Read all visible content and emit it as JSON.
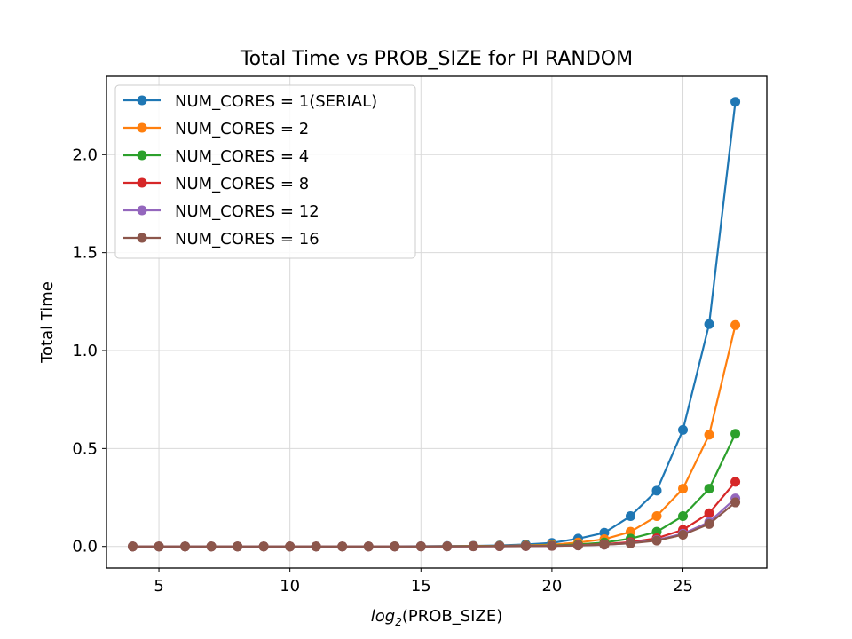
{
  "chart_data": {
    "type": "line",
    "title": "Total Time vs PROB_SIZE for PI RANDOM",
    "xlabel_prefix": "log",
    "xlabel_sub": "2",
    "xlabel_suffix": "(PROB_SIZE)",
    "ylabel": "Total Time",
    "xlim": [
      3,
      28.2
    ],
    "ylim": [
      -0.11,
      2.4
    ],
    "xticks": [
      5,
      10,
      15,
      20,
      25
    ],
    "yticks": [
      0.0,
      0.5,
      1.0,
      1.5,
      2.0
    ],
    "xtick_labels": [
      "5",
      "10",
      "15",
      "20",
      "25"
    ],
    "ytick_labels": [
      "0.0",
      "0.5",
      "1.0",
      "1.5",
      "2.0"
    ],
    "grid": true,
    "legend_position": "upper-left",
    "x": [
      4,
      5,
      6,
      7,
      8,
      9,
      10,
      11,
      12,
      13,
      14,
      15,
      16,
      17,
      18,
      19,
      20,
      21,
      22,
      23,
      24,
      25,
      26,
      27
    ],
    "series": [
      {
        "name": "NUM_CORES = 1(SERIAL)",
        "color": "#1f77b4",
        "values": [
          0.0,
          0.0,
          0.0,
          0.0,
          0.0,
          0.0,
          0.0,
          0.0,
          0.0,
          0.0,
          0.0005,
          0.001,
          0.002,
          0.003,
          0.005,
          0.01,
          0.018,
          0.04,
          0.07,
          0.155,
          0.285,
          0.595,
          1.135,
          2.27
        ]
      },
      {
        "name": "NUM_CORES = 2",
        "color": "#ff7f0e",
        "values": [
          0.0,
          0.0,
          0.0,
          0.0,
          0.0,
          0.0,
          0.0,
          0.0,
          0.0,
          0.0,
          0.0003,
          0.0006,
          0.001,
          0.002,
          0.003,
          0.005,
          0.009,
          0.02,
          0.037,
          0.075,
          0.155,
          0.295,
          0.57,
          1.13
        ]
      },
      {
        "name": "NUM_CORES = 4",
        "color": "#2ca02c",
        "values": [
          0.0,
          0.0,
          0.0,
          0.0,
          0.0,
          0.0,
          0.0,
          0.0,
          0.0,
          0.0,
          0.0002,
          0.0004,
          0.0007,
          0.0012,
          0.002,
          0.003,
          0.005,
          0.01,
          0.02,
          0.04,
          0.075,
          0.155,
          0.295,
          0.575
        ]
      },
      {
        "name": "NUM_CORES = 8",
        "color": "#d62728",
        "values": [
          0.0,
          0.0,
          0.0,
          0.0,
          0.0,
          0.0,
          0.0,
          0.0,
          0.0,
          0.0,
          0.0001,
          0.0003,
          0.0005,
          0.0008,
          0.0013,
          0.002,
          0.003,
          0.006,
          0.012,
          0.022,
          0.042,
          0.085,
          0.17,
          0.33
        ]
      },
      {
        "name": "NUM_CORES = 12",
        "color": "#9467bd",
        "values": [
          0.0,
          0.0,
          0.0,
          0.0,
          0.0,
          0.0,
          0.0,
          0.0,
          0.0,
          0.0,
          0.0001,
          0.0002,
          0.0004,
          0.0006,
          0.001,
          0.0015,
          0.0025,
          0.005,
          0.009,
          0.017,
          0.033,
          0.065,
          0.125,
          0.245
        ]
      },
      {
        "name": "NUM_CORES = 16",
        "color": "#8c564b",
        "values": [
          0.0,
          0.0,
          0.0,
          0.0,
          0.0,
          0.0,
          0.0,
          0.0,
          0.0,
          0.0,
          0.0001,
          0.0002,
          0.0004,
          0.0006,
          0.001,
          0.0015,
          0.0025,
          0.005,
          0.009,
          0.016,
          0.03,
          0.06,
          0.115,
          0.225
        ]
      }
    ]
  }
}
